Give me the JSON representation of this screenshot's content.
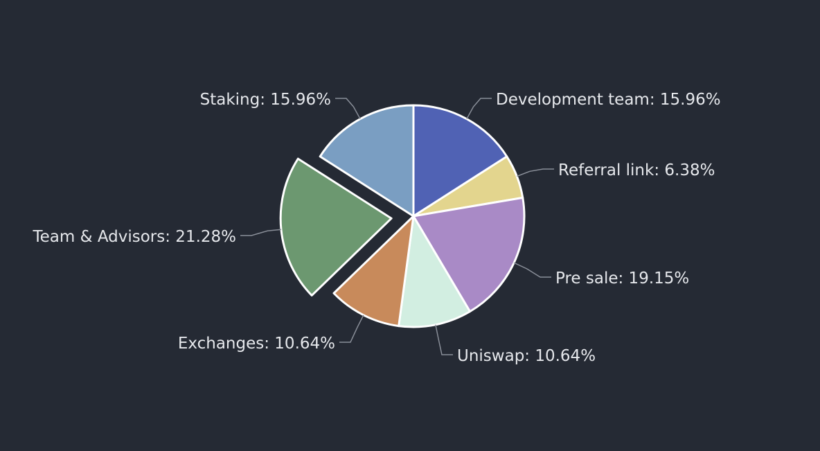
{
  "chart_data": {
    "type": "pie",
    "title": "",
    "slices": [
      {
        "label": "Development team",
        "value": 15.96,
        "color": "#5062b4",
        "text": "Development team: 15.96%",
        "exploded": false
      },
      {
        "label": "Referral link",
        "value": 6.38,
        "color": "#e3d58e",
        "text": "Referral link: 6.38%",
        "exploded": false
      },
      {
        "label": "Pre sale",
        "value": 19.15,
        "color": "#a98ac6",
        "text": "Pre sale: 19.15%",
        "exploded": false
      },
      {
        "label": "Uniswap",
        "value": 10.64,
        "color": "#d2eee1",
        "text": "Uniswap: 10.64%",
        "exploded": false
      },
      {
        "label": "Exchanges",
        "value": 10.64,
        "color": "#c88a5b",
        "text": "Exchanges: 10.64%",
        "exploded": false
      },
      {
        "label": "Team & Advisors",
        "value": 21.28,
        "color": "#6c9870",
        "text": "Team & Advisors: 21.28%",
        "exploded": true
      },
      {
        "label": "Staking",
        "value": 15.96,
        "color": "#7a9ec2",
        "text": "Staking: 15.96%",
        "exploded": false
      }
    ],
    "background": "#252a34",
    "label_color": "#e6e8ec",
    "leader_color": "#8a8f99",
    "legend": "none"
  }
}
